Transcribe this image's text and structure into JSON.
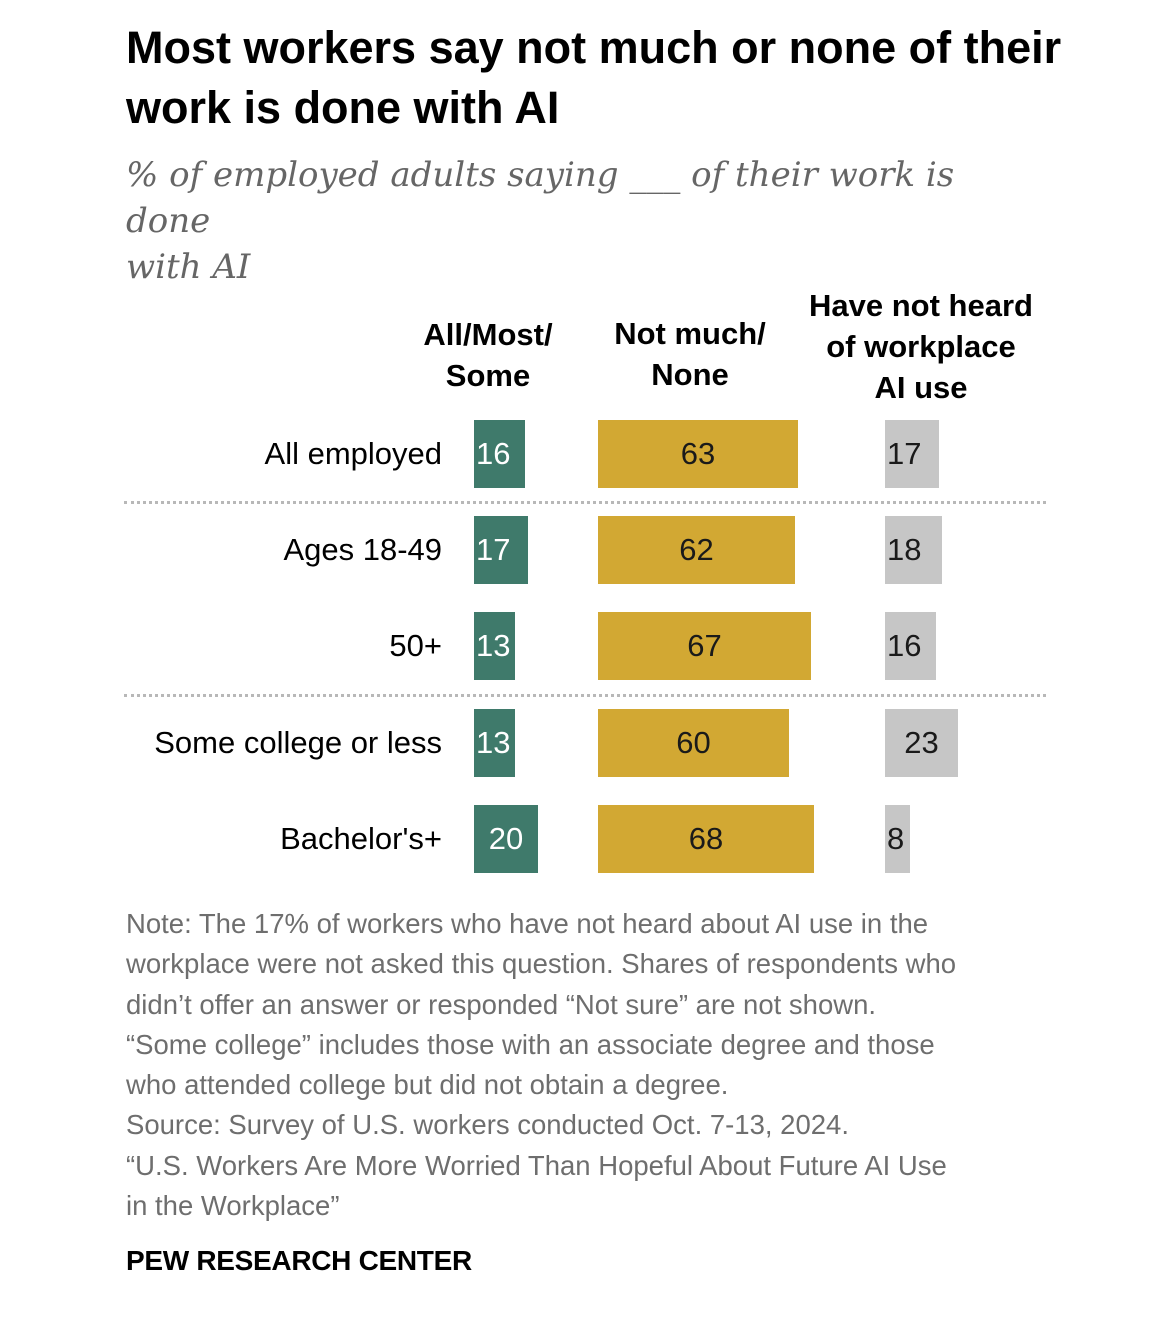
{
  "chart_data": {
    "type": "bar",
    "title": "Most workers say not much or none of their work is done with AI",
    "subtitle_lines": [
      "% of employed adults saying ___ of their work is done",
      "with AI"
    ],
    "column_headers": [
      [
        "All/Most/",
        "Some"
      ],
      [
        "Not much/",
        "None"
      ],
      [
        "Have not heard",
        "of workplace",
        "AI use"
      ]
    ],
    "categories": [
      "All employed",
      "Ages 18-49",
      "50+",
      "Some college or less",
      "Bachelor's+"
    ],
    "groups": [
      [
        0
      ],
      [
        1,
        2
      ],
      [
        3,
        4
      ]
    ],
    "series": [
      {
        "name": "All/Most/Some",
        "values": [
          16,
          17,
          13,
          13,
          20
        ],
        "color": "#3f7a6b",
        "text_color": "#ffffff"
      },
      {
        "name": "Not much/None",
        "values": [
          63,
          62,
          67,
          60,
          68
        ],
        "color": "#d2a833",
        "text_color": "#1a1a1a"
      },
      {
        "name": "Have not heard of workplace AI use",
        "values": [
          17,
          18,
          16,
          23,
          8
        ],
        "color": "#c6c6c6",
        "text_color": "#1a1a1a"
      }
    ]
  },
  "note_lines": [
    "Note: The 17% of workers who have not heard about AI use in the",
    "workplace were not asked this question. Shares of respondents who",
    "didn’t offer an answer or responded “Not sure” are not shown.",
    "“Some college” includes those with an associate degree and those",
    "who attended college but did not obtain a degree.",
    "Source: Survey of U.S. workers conducted Oct. 7-13, 2024.",
    "“U.S. Workers Are More Worried Than Hopeful About Future AI Use",
    "in the Workplace”"
  ],
  "brand": "PEW RESEARCH CENTER"
}
